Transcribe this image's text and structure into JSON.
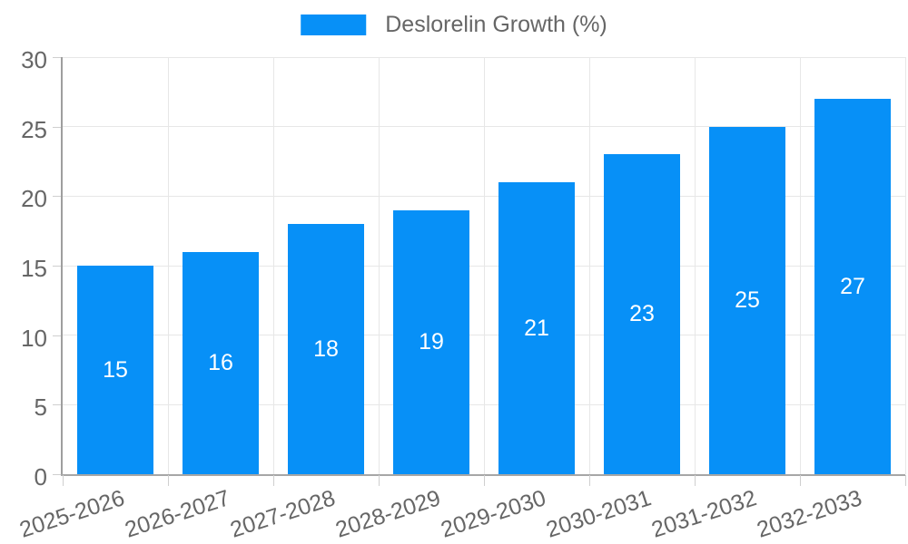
{
  "chart_data": {
    "type": "bar",
    "title": "",
    "legend_label": "Deslorelin Growth (%)",
    "legend_position": "top-center",
    "categories": [
      "2025-2026",
      "2026-2027",
      "2027-2028",
      "2028-2029",
      "2029-2030",
      "2030-2031",
      "2031-2032",
      "2032-2033"
    ],
    "values": [
      15,
      16,
      18,
      19,
      21,
      23,
      25,
      27
    ],
    "xlabel": "",
    "ylabel": "",
    "ylim": [
      0,
      30
    ],
    "yticks": [
      0,
      5,
      10,
      15,
      20,
      25,
      30
    ],
    "grid": true,
    "value_labels_inside_bars": true,
    "colors": {
      "bar": "#0790f7",
      "grid_line": "#e7e7e7",
      "axis_line": "#9e9e9e",
      "tick_mark": "#cfcfcf",
      "tick_text": "#666666",
      "legend_text": "#666666",
      "value_label_text": "#ffffff",
      "background": "#ffffff"
    }
  }
}
